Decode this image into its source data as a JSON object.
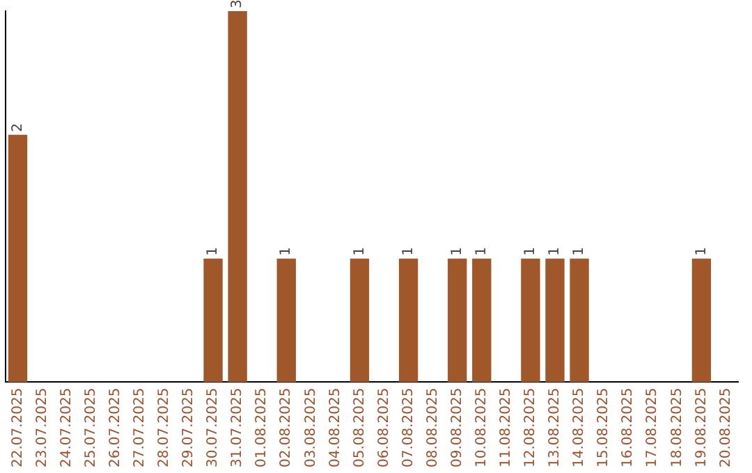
{
  "chart_data": {
    "type": "bar",
    "categories": [
      "22.07.2025",
      "23.07.2025",
      "24.07.2025",
      "25.07.2025",
      "26.07.2025",
      "27.07.2025",
      "28.07.2025",
      "29.07.2025",
      "30.07.2025",
      "31.07.2025",
      "01.08.2025",
      "02.08.2025",
      "03.08.2025",
      "04.08.2025",
      "05.08.2025",
      "06.08.2025",
      "07.08.2025",
      "08.08.2025",
      "09.08.2025",
      "10.08.2025",
      "11.08.2025",
      "12.08.2025",
      "13.08.2025",
      "14.08.2025",
      "15.08.2025",
      "16.08.2025",
      "17.08.2025",
      "18.08.2025",
      "19.08.2025",
      "20.08.2025"
    ],
    "values": [
      2,
      0,
      0,
      0,
      0,
      0,
      0,
      0,
      1,
      3,
      0,
      1,
      0,
      0,
      1,
      0,
      1,
      0,
      1,
      1,
      0,
      1,
      1,
      1,
      0,
      0,
      0,
      0,
      1,
      0
    ],
    "value_labels": [
      "2",
      null,
      null,
      null,
      null,
      null,
      null,
      null,
      "1",
      "3",
      null,
      "1",
      null,
      null,
      "1",
      null,
      "1",
      null,
      "1",
      "1",
      null,
      "1",
      "1",
      "1",
      null,
      null,
      null,
      null,
      "1",
      null
    ],
    "color": "#a0572a",
    "ylim": [
      0,
      3
    ],
    "tick_labels": "x",
    "grid": false,
    "legend": false
  }
}
